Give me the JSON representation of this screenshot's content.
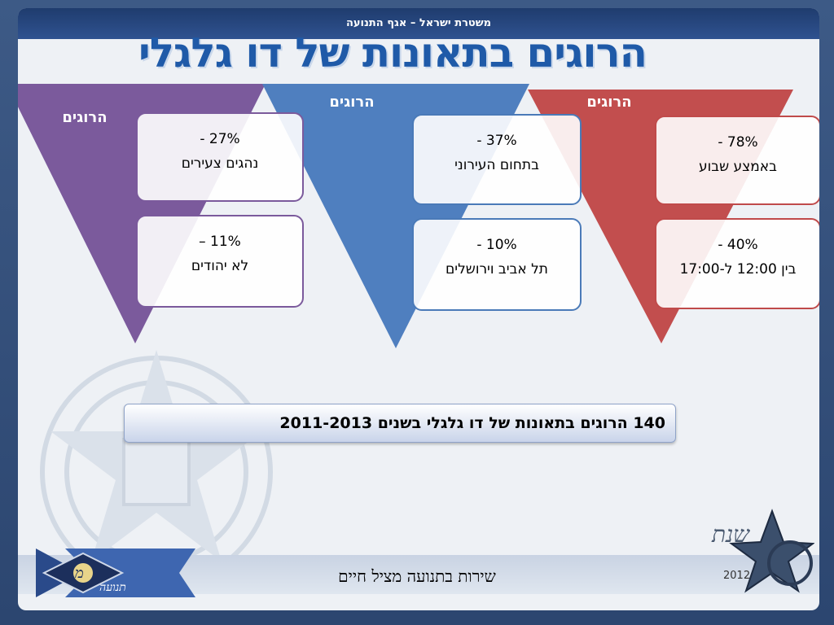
{
  "header": {
    "org_line": "משטרת ישראל – אגף התנועה",
    "title": "הרוגים בתאונות של דו גלגלי"
  },
  "columns": [
    {
      "label": "הרוגים",
      "color": "#7b5a9c",
      "boxes": [
        {
          "pct": "27% -",
          "desc": "נהגים צעירים"
        },
        {
          "pct": "11% –",
          "desc": "לא יהודים"
        }
      ]
    },
    {
      "label": "הרוגים",
      "color": "#4f7fbf",
      "boxes": [
        {
          "pct": "37% -",
          "desc": "בתחום העירוני"
        },
        {
          "pct": "10% -",
          "desc": "תל אביב וירושלים"
        }
      ]
    },
    {
      "label": "הרוגים",
      "color": "#c24e4e",
      "boxes": [
        {
          "pct": "78% -",
          "desc": "באמצע שבוע"
        },
        {
          "pct": "40% -",
          "desc": "בין 12:00 ל-17:00"
        }
      ]
    }
  ],
  "summary": "140 הרוגים בתאונות של דו גלגלי בשנים 2011-2013",
  "footer": {
    "slogan": "שירות בתנועה מציל חיים",
    "logo_left_text": "מ",
    "logo_left_word": "תנועה",
    "logo_right_text": "שנת",
    "logo_right_year": "2012"
  }
}
